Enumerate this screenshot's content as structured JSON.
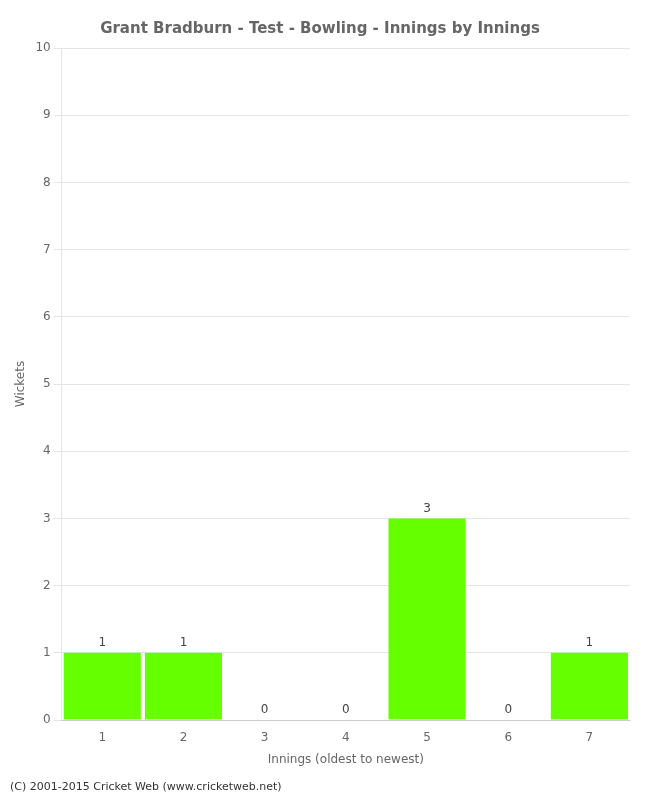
{
  "chart_data": {
    "type": "bar",
    "title": "Grant Bradburn - Test - Bowling - Innings by Innings",
    "xlabel": "Innings (oldest to newest)",
    "ylabel": "Wickets",
    "categories": [
      "1",
      "2",
      "3",
      "4",
      "5",
      "6",
      "7"
    ],
    "values": [
      1,
      1,
      0,
      0,
      3,
      0,
      1
    ],
    "color": "#66ff00",
    "ylim": [
      0,
      10
    ],
    "yticks": [
      0,
      1,
      2,
      3,
      4,
      5,
      6,
      7,
      8,
      9,
      10
    ],
    "grid": true,
    "data_labels": true,
    "footer": "(C) 2001-2015 Cricket Web (www.cricketweb.net)"
  }
}
